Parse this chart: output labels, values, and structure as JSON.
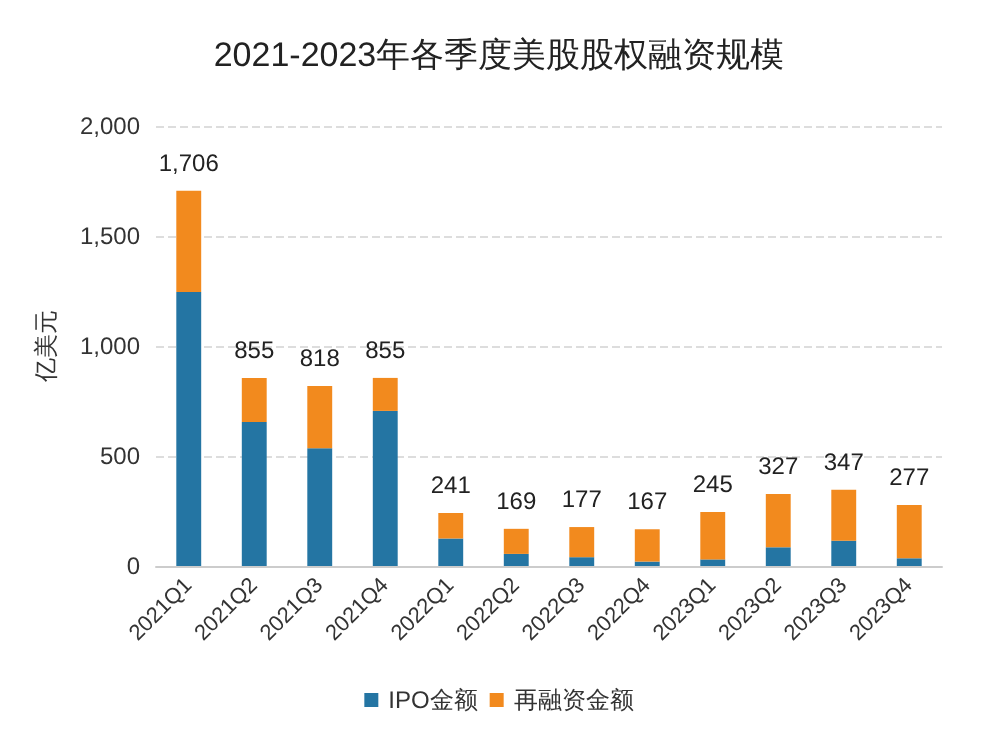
{
  "chart_data": {
    "type": "bar",
    "title": "2021-2023年各季度美股股权融资规模",
    "ylabel": "亿美元",
    "stacked": true,
    "categories": [
      "2021Q1",
      "2021Q2",
      "2021Q3",
      "2021Q4",
      "2022Q1",
      "2022Q2",
      "2022Q3",
      "2022Q4",
      "2023Q1",
      "2023Q2",
      "2023Q3",
      "2023Q4"
    ],
    "series": [
      {
        "name": "IPO金额",
        "color": "#2475a3",
        "values": [
          1245,
          655,
          535,
          705,
          125,
          55,
          40,
          20,
          30,
          85,
          115,
          35
        ]
      },
      {
        "name": "再融资金额",
        "color": "#f28a1e",
        "values": [
          461,
          200,
          283,
          150,
          116,
          114,
          137,
          147,
          215,
          242,
          232,
          242
        ]
      }
    ],
    "totals": [
      "1,706",
      "855",
      "818",
      "855",
      "241",
      "169",
      "177",
      "167",
      "245",
      "327",
      "347",
      "277"
    ],
    "ylim": [
      0,
      2000
    ],
    "yticks": [
      0,
      500,
      {
        "value": 1000,
        "label": "1,000"
      },
      {
        "value": 1500,
        "label": "1,500"
      },
      {
        "value": 2000,
        "label": "2,000"
      }
    ],
    "grid": "y",
    "legend": "bottom"
  }
}
